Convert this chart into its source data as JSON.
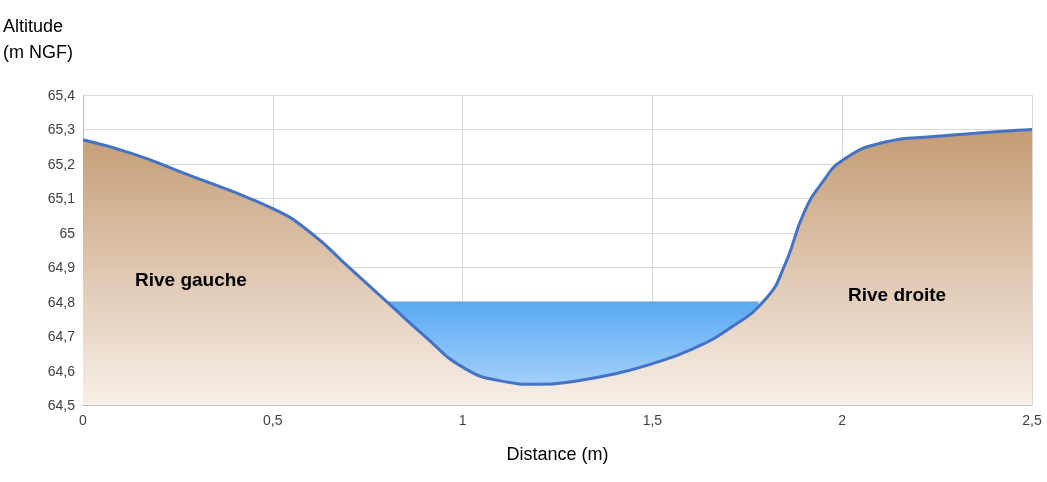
{
  "chart_data": {
    "type": "area",
    "xlabel": "Distance (m)",
    "ylabel": "Altitude\n(m NGF)",
    "xlim": [
      0,
      2.5
    ],
    "ylim": [
      64.5,
      65.4
    ],
    "xticks": [
      0,
      {
        "value": 0.5,
        "label": "0,5"
      },
      1,
      {
        "value": 1.5,
        "label": "1,5"
      },
      2,
      {
        "value": 2.5,
        "label": "2,5"
      }
    ],
    "yticks": [
      {
        "value": 64.5,
        "label": "64,5"
      },
      {
        "value": 64.6,
        "label": "64,6"
      },
      {
        "value": 64.7,
        "label": "64,7"
      },
      {
        "value": 64.8,
        "label": "64,8"
      },
      {
        "value": 64.9,
        "label": "64,9"
      },
      65,
      {
        "value": 65.1,
        "label": "65,1"
      },
      {
        "value": 65.2,
        "label": "65,2"
      },
      {
        "value": 65.3,
        "label": "65,3"
      },
      {
        "value": 65.4,
        "label": "65,4"
      }
    ],
    "grid": true,
    "annotations": [
      "Rive gauche",
      "Rive droite"
    ],
    "series": [
      {
        "color": "#5aa9f2",
        "x": [
          0.8,
          1.78
        ],
        "values": [
          64.8,
          64.8
        ]
      },
      {
        "color": "#c49c74",
        "x": [
          0,
          0.13,
          0.25,
          0.5,
          0.6,
          0.7,
          0.8,
          0.9,
          1.0,
          1.1,
          1.2,
          1.3,
          1.4,
          1.5,
          1.6,
          1.7,
          1.8,
          1.85,
          1.9,
          1.95,
          2.0,
          2.1,
          2.25,
          2.5
        ],
        "values": [
          65.27,
          65.23,
          65.18,
          65.07,
          65.0,
          64.9,
          64.8,
          64.7,
          64.61,
          64.57,
          64.56,
          64.57,
          64.59,
          64.62,
          64.66,
          64.72,
          64.81,
          64.91,
          65.06,
          65.15,
          65.21,
          65.26,
          65.28,
          65.3
        ]
      }
    ]
  }
}
